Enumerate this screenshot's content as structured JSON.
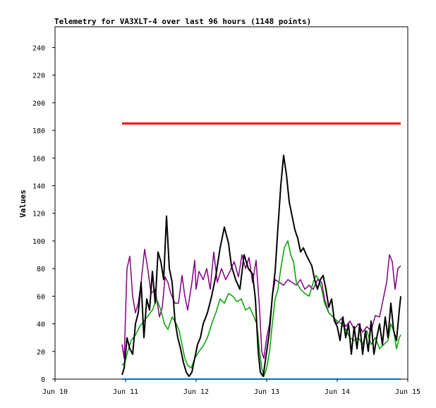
{
  "chart_data": {
    "type": "line",
    "title": "Telemetry for VA3XLT-4 over last 96 hours (1148 points)",
    "xlabel": "",
    "ylabel": "Values",
    "x_axis": {
      "min_day": 10,
      "max_day": 15,
      "tick_labels": [
        "Jun 10",
        "Jun 11",
        "Jun 12",
        "Jun 13",
        "Jun 14",
        "Jun 15"
      ]
    },
    "y_axis": {
      "ylim": [
        0,
        255
      ],
      "ticks": [
        0,
        20,
        40,
        60,
        80,
        100,
        120,
        140,
        160,
        180,
        200,
        220,
        240
      ]
    },
    "grid": false,
    "legend": "none",
    "series": [
      {
        "color": "#800080",
        "points": [
          [
            10.95,
            25
          ],
          [
            10.98,
            15
          ],
          [
            11.02,
            80
          ],
          [
            11.06,
            89
          ],
          [
            11.1,
            60
          ],
          [
            11.14,
            48
          ],
          [
            11.18,
            55
          ],
          [
            11.22,
            70
          ],
          [
            11.27,
            94
          ],
          [
            11.32,
            78
          ],
          [
            11.36,
            62
          ],
          [
            11.42,
            65
          ],
          [
            11.48,
            45
          ],
          [
            11.52,
            52
          ],
          [
            11.56,
            74
          ],
          [
            11.6,
            70
          ],
          [
            11.64,
            62
          ],
          [
            11.7,
            55
          ],
          [
            11.75,
            55
          ],
          [
            11.8,
            75
          ],
          [
            11.84,
            60
          ],
          [
            11.88,
            50
          ],
          [
            11.94,
            70
          ],
          [
            11.98,
            86
          ],
          [
            12.0,
            65
          ],
          [
            12.04,
            78
          ],
          [
            12.1,
            72
          ],
          [
            12.15,
            80
          ],
          [
            12.2,
            65
          ],
          [
            12.25,
            92
          ],
          [
            12.3,
            70
          ],
          [
            12.36,
            80
          ],
          [
            12.42,
            72
          ],
          [
            12.48,
            78
          ],
          [
            12.54,
            85
          ],
          [
            12.6,
            74
          ],
          [
            12.65,
            90
          ],
          [
            12.7,
            80
          ],
          [
            12.75,
            88
          ],
          [
            12.8,
            70
          ],
          [
            12.85,
            86
          ],
          [
            12.9,
            50
          ],
          [
            12.93,
            20
          ],
          [
            12.96,
            15
          ],
          [
            13.0,
            30
          ],
          [
            13.04,
            40
          ],
          [
            13.08,
            60
          ],
          [
            13.12,
            72
          ],
          [
            13.18,
            70
          ],
          [
            13.24,
            68
          ],
          [
            13.3,
            72
          ],
          [
            13.36,
            70
          ],
          [
            13.42,
            68
          ],
          [
            13.48,
            72
          ],
          [
            13.54,
            65
          ],
          [
            13.6,
            68
          ],
          [
            13.66,
            65
          ],
          [
            13.72,
            72
          ],
          [
            13.78,
            70
          ],
          [
            13.82,
            58
          ],
          [
            13.88,
            48
          ],
          [
            13.94,
            45
          ],
          [
            14.0,
            40
          ],
          [
            14.06,
            44
          ],
          [
            14.12,
            38
          ],
          [
            14.18,
            42
          ],
          [
            14.24,
            36
          ],
          [
            14.3,
            40
          ],
          [
            14.36,
            34
          ],
          [
            14.42,
            38
          ],
          [
            14.48,
            35
          ],
          [
            14.54,
            46
          ],
          [
            14.6,
            45
          ],
          [
            14.66,
            60
          ],
          [
            14.7,
            70
          ],
          [
            14.74,
            90
          ],
          [
            14.78,
            85
          ],
          [
            14.82,
            65
          ],
          [
            14.86,
            80
          ],
          [
            14.9,
            82
          ]
        ]
      },
      {
        "color": "#00a000",
        "points": [
          [
            10.95,
            10
          ],
          [
            10.99,
            12
          ],
          [
            11.03,
            20
          ],
          [
            11.08,
            28
          ],
          [
            11.14,
            32
          ],
          [
            11.2,
            38
          ],
          [
            11.26,
            42
          ],
          [
            11.32,
            46
          ],
          [
            11.38,
            50
          ],
          [
            11.44,
            58
          ],
          [
            11.5,
            50
          ],
          [
            11.55,
            40
          ],
          [
            11.6,
            36
          ],
          [
            11.66,
            45
          ],
          [
            11.72,
            40
          ],
          [
            11.76,
            35
          ],
          [
            11.8,
            25
          ],
          [
            11.84,
            15
          ],
          [
            11.88,
            10
          ],
          [
            11.93,
            8
          ],
          [
            11.98,
            15
          ],
          [
            12.04,
            20
          ],
          [
            12.1,
            24
          ],
          [
            12.16,
            30
          ],
          [
            12.22,
            40
          ],
          [
            12.28,
            48
          ],
          [
            12.34,
            58
          ],
          [
            12.4,
            55
          ],
          [
            12.46,
            62
          ],
          [
            12.52,
            60
          ],
          [
            12.58,
            56
          ],
          [
            12.64,
            58
          ],
          [
            12.7,
            50
          ],
          [
            12.76,
            52
          ],
          [
            12.82,
            45
          ],
          [
            12.86,
            40
          ],
          [
            12.9,
            20
          ],
          [
            12.93,
            8
          ],
          [
            12.96,
            2
          ],
          [
            13.0,
            8
          ],
          [
            13.04,
            20
          ],
          [
            13.08,
            40
          ],
          [
            13.12,
            58
          ],
          [
            13.16,
            65
          ],
          [
            13.2,
            80
          ],
          [
            13.25,
            95
          ],
          [
            13.3,
            100
          ],
          [
            13.34,
            90
          ],
          [
            13.38,
            85
          ],
          [
            13.42,
            70
          ],
          [
            13.48,
            65
          ],
          [
            13.54,
            62
          ],
          [
            13.6,
            60
          ],
          [
            13.66,
            70
          ],
          [
            13.7,
            75
          ],
          [
            13.74,
            72
          ],
          [
            13.78,
            65
          ],
          [
            13.82,
            55
          ],
          [
            13.88,
            48
          ],
          [
            13.94,
            45
          ],
          [
            14.0,
            42
          ],
          [
            14.06,
            40
          ],
          [
            14.12,
            36
          ],
          [
            14.18,
            30
          ],
          [
            14.24,
            28
          ],
          [
            14.3,
            30
          ],
          [
            14.36,
            25
          ],
          [
            14.42,
            35
          ],
          [
            14.48,
            25
          ],
          [
            14.54,
            30
          ],
          [
            14.6,
            22
          ],
          [
            14.66,
            25
          ],
          [
            14.72,
            28
          ],
          [
            14.76,
            40
          ],
          [
            14.8,
            35
          ],
          [
            14.84,
            22
          ],
          [
            14.88,
            30
          ],
          [
            14.9,
            32
          ]
        ]
      },
      {
        "color": "#000000",
        "points": [
          [
            10.95,
            3
          ],
          [
            10.98,
            8
          ],
          [
            11.02,
            30
          ],
          [
            11.06,
            22
          ],
          [
            11.1,
            18
          ],
          [
            11.14,
            40
          ],
          [
            11.18,
            48
          ],
          [
            11.22,
            70
          ],
          [
            11.26,
            30
          ],
          [
            11.3,
            58
          ],
          [
            11.34,
            50
          ],
          [
            11.38,
            78
          ],
          [
            11.42,
            55
          ],
          [
            11.46,
            92
          ],
          [
            11.5,
            85
          ],
          [
            11.54,
            72
          ],
          [
            11.58,
            118
          ],
          [
            11.62,
            80
          ],
          [
            11.66,
            70
          ],
          [
            11.7,
            42
          ],
          [
            11.74,
            30
          ],
          [
            11.78,
            22
          ],
          [
            11.82,
            12
          ],
          [
            11.86,
            5
          ],
          [
            11.9,
            2
          ],
          [
            11.94,
            5
          ],
          [
            11.98,
            15
          ],
          [
            12.02,
            25
          ],
          [
            12.06,
            30
          ],
          [
            12.1,
            40
          ],
          [
            12.16,
            48
          ],
          [
            12.22,
            60
          ],
          [
            12.28,
            75
          ],
          [
            12.34,
            95
          ],
          [
            12.4,
            110
          ],
          [
            12.46,
            98
          ],
          [
            12.5,
            82
          ],
          [
            12.56,
            72
          ],
          [
            12.62,
            65
          ],
          [
            12.68,
            90
          ],
          [
            12.74,
            80
          ],
          [
            12.8,
            76
          ],
          [
            12.84,
            58
          ],
          [
            12.88,
            20
          ],
          [
            12.91,
            5
          ],
          [
            12.95,
            2
          ],
          [
            13.0,
            20
          ],
          [
            13.04,
            35
          ],
          [
            13.08,
            60
          ],
          [
            13.12,
            78
          ],
          [
            13.16,
            110
          ],
          [
            13.2,
            140
          ],
          [
            13.24,
            162
          ],
          [
            13.28,
            148
          ],
          [
            13.32,
            128
          ],
          [
            13.36,
            118
          ],
          [
            13.4,
            108
          ],
          [
            13.44,
            102
          ],
          [
            13.48,
            92
          ],
          [
            13.52,
            95
          ],
          [
            13.56,
            90
          ],
          [
            13.6,
            86
          ],
          [
            13.64,
            82
          ],
          [
            13.68,
            72
          ],
          [
            13.72,
            65
          ],
          [
            13.76,
            72
          ],
          [
            13.8,
            75
          ],
          [
            13.84,
            65
          ],
          [
            13.88,
            52
          ],
          [
            13.92,
            58
          ],
          [
            13.96,
            42
          ],
          [
            14.0,
            38
          ],
          [
            14.04,
            28
          ],
          [
            14.08,
            45
          ],
          [
            14.12,
            30
          ],
          [
            14.16,
            40
          ],
          [
            14.2,
            18
          ],
          [
            14.24,
            38
          ],
          [
            14.28,
            22
          ],
          [
            14.32,
            40
          ],
          [
            14.36,
            18
          ],
          [
            14.4,
            35
          ],
          [
            14.44,
            20
          ],
          [
            14.48,
            42
          ],
          [
            14.52,
            18
          ],
          [
            14.56,
            30
          ],
          [
            14.6,
            40
          ],
          [
            14.64,
            25
          ],
          [
            14.68,
            45
          ],
          [
            14.72,
            30
          ],
          [
            14.76,
            55
          ],
          [
            14.8,
            35
          ],
          [
            14.84,
            28
          ],
          [
            14.88,
            50
          ],
          [
            14.9,
            60
          ]
        ]
      },
      {
        "color": "#ff0000",
        "points": [
          [
            10.95,
            185
          ],
          [
            14.9,
            185
          ]
        ]
      },
      {
        "color": "#0070c0",
        "points": [
          [
            10.95,
            0
          ],
          [
            14.9,
            0
          ]
        ]
      }
    ]
  }
}
